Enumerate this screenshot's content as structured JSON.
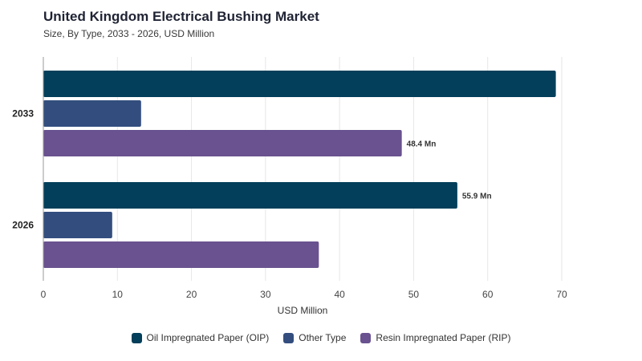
{
  "chart_data": {
    "type": "bar",
    "orientation": "horizontal",
    "title": "United Kingdom Electrical Bushing Market",
    "subtitle": "Size, By Type, 2033 - 2026, USD Million",
    "categories": [
      "2033",
      "2026"
    ],
    "series": [
      {
        "name": "Oil Impregnated Paper (OIP)",
        "color": "#033f5a",
        "values": [
          69.2,
          55.9
        ],
        "data_labels": [
          "",
          "55.9 Mn"
        ]
      },
      {
        "name": "Other Type",
        "color": "#334e7e",
        "values": [
          13.2,
          9.3
        ],
        "data_labels": [
          "",
          ""
        ]
      },
      {
        "name": "Resin Impregnated Paper (RIP)",
        "color": "#69528f",
        "values": [
          48.4,
          37.2
        ],
        "data_labels": [
          "48.4 Mn",
          ""
        ]
      }
    ],
    "xlabel": "USD Million",
    "xlim": [
      0,
      70
    ],
    "xticks": [
      "0",
      "10",
      "20",
      "30",
      "40",
      "50",
      "60",
      "70"
    ],
    "grid": true,
    "legend_position": "bottom"
  }
}
